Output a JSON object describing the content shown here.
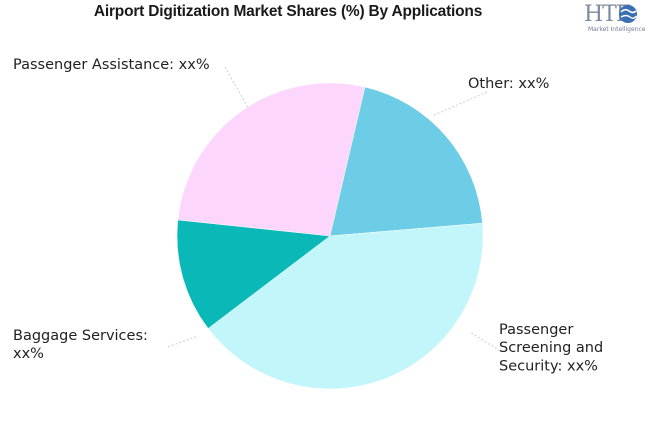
{
  "chart_data": {
    "type": "pie",
    "title": "Airport Digitization Market Shares (%) By Applications",
    "slices": [
      {
        "label": "Other: xx%",
        "value": 27,
        "color": "#fcd6fc"
      },
      {
        "label": "Passenger Screening and Security: xx%",
        "value": 20,
        "color": "#6ecde6"
      },
      {
        "label": "Baggage Services: xx%",
        "value": 41,
        "color": "#c2f6fb"
      },
      {
        "label": "Passenger Assistance: xx%",
        "value": 12,
        "color": "#0ab8b8"
      }
    ]
  },
  "logo": {
    "text": "HTF",
    "subtext": "Market Intelligence"
  }
}
